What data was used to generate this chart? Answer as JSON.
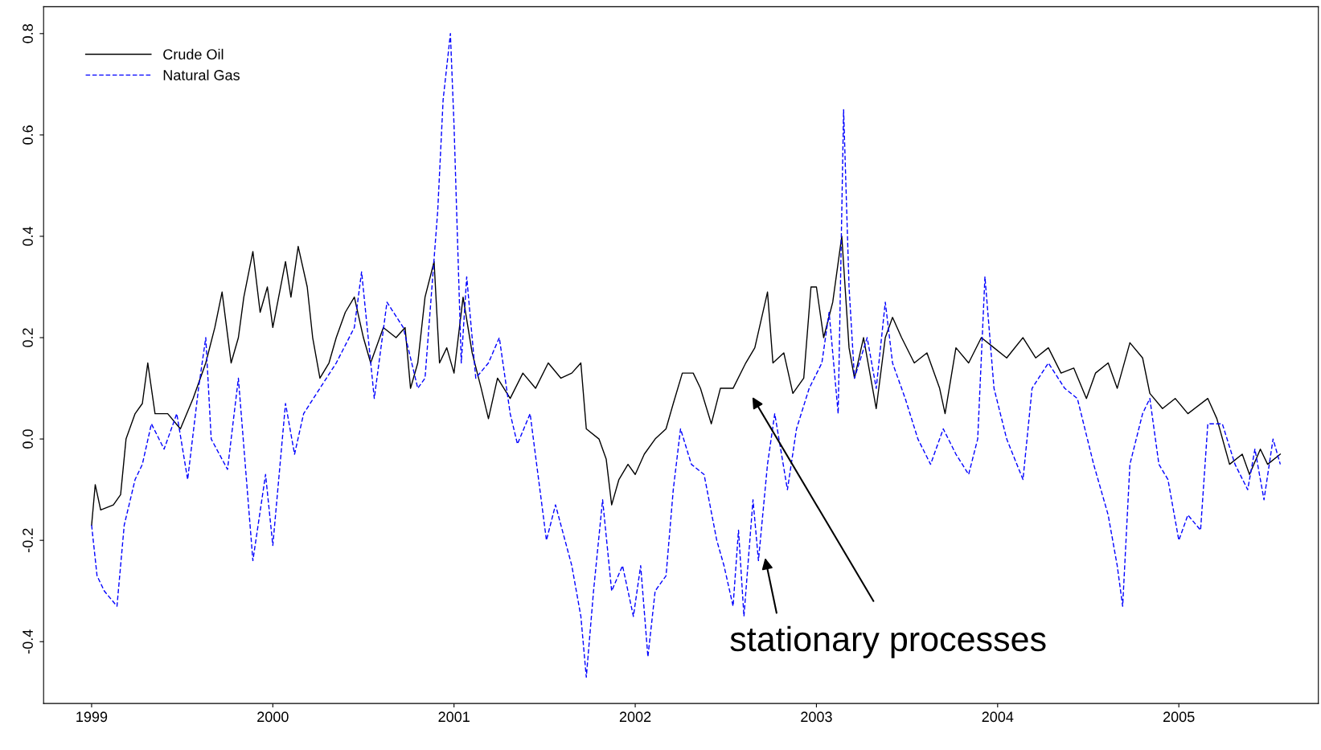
{
  "chart_data": {
    "type": "line",
    "xlim": [
      1998.735,
      2005.77
    ],
    "ylim": [
      -0.522,
      0.853
    ],
    "xticks": [
      1999,
      2000,
      2001,
      2002,
      2003,
      2004,
      2005
    ],
    "yticks": [
      {
        "value": -0.4,
        "label": "-0.4"
      },
      {
        "value": -0.2,
        "label": "-0.2"
      },
      {
        "value": 0,
        "label": "0.0"
      },
      {
        "value": 0.2,
        "label": "0.2"
      },
      {
        "value": 0.4,
        "label": "0.4"
      },
      {
        "value": 0.6,
        "label": "0.6"
      },
      {
        "value": 0.8,
        "label": "0.8"
      }
    ],
    "grid": false,
    "legend": "top left",
    "annotations": [
      "stationary processes"
    ],
    "series": [
      {
        "name": "Crude Oil",
        "color": "#000000",
        "line_style": "solid",
        "x": [
          1999.0,
          1999.02,
          1999.05,
          1999.12,
          1999.16,
          1999.19,
          1999.24,
          1999.28,
          1999.31,
          1999.35,
          1999.42,
          1999.49,
          1999.56,
          1999.63,
          1999.68,
          1999.72,
          1999.77,
          1999.81,
          1999.84,
          1999.89,
          1999.93,
          1999.97,
          2000.0,
          2000.07,
          2000.1,
          2000.14,
          2000.19,
          2000.22,
          2000.26,
          2000.31,
          2000.35,
          2000.4,
          2000.45,
          2000.5,
          2000.54,
          2000.61,
          2000.68,
          2000.73,
          2000.76,
          2000.8,
          2000.84,
          2000.89,
          2000.92,
          2000.96,
          2001.0,
          2001.05,
          2001.1,
          2001.15,
          2001.19,
          2001.24,
          2001.31,
          2001.38,
          2001.45,
          2001.52,
          2001.59,
          2001.65,
          2001.7,
          2001.73,
          2001.8,
          2001.84,
          2001.87,
          2001.91,
          2001.96,
          2002.0,
          2002.05,
          2002.11,
          2002.17,
          2002.21,
          2002.26,
          2002.32,
          2002.36,
          2002.42,
          2002.47,
          2002.54,
          2002.61,
          2002.66,
          2002.73,
          2002.76,
          2002.82,
          2002.87,
          2002.93,
          2002.97,
          2003.0,
          2003.04,
          2003.09,
          2003.14,
          2003.18,
          2003.21,
          2003.26,
          2003.31,
          2003.33,
          2003.38,
          2003.42,
          2003.47,
          2003.54,
          2003.61,
          2003.68,
          2003.71,
          2003.77,
          2003.84,
          2003.91,
          2003.98,
          2004.05,
          2004.14,
          2004.21,
          2004.28,
          2004.35,
          2004.42,
          2004.49,
          2004.54,
          2004.61,
          2004.66,
          2004.73,
          2004.8,
          2004.84,
          2004.91,
          2004.98,
          2005.05,
          2005.16,
          2005.21,
          2005.28,
          2005.35,
          2005.39,
          2005.45,
          2005.49,
          2005.56
        ],
        "values": [
          -0.17,
          -0.09,
          -0.14,
          -0.13,
          -0.11,
          0.0,
          0.05,
          0.07,
          0.15,
          0.05,
          0.05,
          0.02,
          0.08,
          0.15,
          0.22,
          0.29,
          0.15,
          0.2,
          0.28,
          0.37,
          0.25,
          0.3,
          0.22,
          0.35,
          0.28,
          0.38,
          0.3,
          0.2,
          0.12,
          0.15,
          0.2,
          0.25,
          0.28,
          0.2,
          0.15,
          0.22,
          0.2,
          0.22,
          0.1,
          0.15,
          0.28,
          0.35,
          0.15,
          0.18,
          0.13,
          0.28,
          0.17,
          0.1,
          0.04,
          0.12,
          0.08,
          0.13,
          0.1,
          0.15,
          0.12,
          0.13,
          0.15,
          0.02,
          0.0,
          -0.04,
          -0.13,
          -0.08,
          -0.05,
          -0.07,
          -0.03,
          0.0,
          0.02,
          0.07,
          0.13,
          0.13,
          0.1,
          0.03,
          0.1,
          0.1,
          0.15,
          0.18,
          0.29,
          0.15,
          0.17,
          0.09,
          0.12,
          0.3,
          0.3,
          0.2,
          0.27,
          0.4,
          0.18,
          0.12,
          0.2,
          0.1,
          0.06,
          0.2,
          0.24,
          0.2,
          0.15,
          0.17,
          0.1,
          0.05,
          0.18,
          0.15,
          0.2,
          0.18,
          0.16,
          0.2,
          0.16,
          0.18,
          0.13,
          0.14,
          0.08,
          0.13,
          0.15,
          0.1,
          0.19,
          0.16,
          0.09,
          0.06,
          0.08,
          0.05,
          0.08,
          0.04,
          -0.05,
          -0.03,
          -0.07,
          -0.02,
          -0.05,
          -0.03
        ]
      },
      {
        "name": "Natural Gas",
        "color": "#0000ff",
        "line_style": "dashed",
        "x": [
          1999.0,
          1999.03,
          1999.07,
          1999.14,
          1999.18,
          1999.24,
          1999.28,
          1999.33,
          1999.4,
          1999.47,
          1999.53,
          1999.59,
          1999.63,
          1999.66,
          1999.75,
          1999.81,
          1999.89,
          1999.96,
          2000.0,
          2000.07,
          2000.12,
          2000.17,
          2000.26,
          2000.35,
          2000.45,
          2000.49,
          2000.56,
          2000.63,
          2000.72,
          2000.8,
          2000.84,
          2000.91,
          2000.94,
          2000.98,
          2001.0,
          2001.04,
          2001.07,
          2001.12,
          2001.19,
          2001.25,
          2001.31,
          2001.35,
          2001.42,
          2001.51,
          2001.56,
          2001.65,
          2001.7,
          2001.73,
          2001.77,
          2001.82,
          2001.87,
          2001.93,
          2001.99,
          2002.03,
          2002.07,
          2002.11,
          2002.17,
          2002.21,
          2002.25,
          2002.31,
          2002.38,
          2002.45,
          2002.49,
          2002.54,
          2002.57,
          2002.6,
          2002.65,
          2002.68,
          2002.73,
          2002.77,
          2002.84,
          2002.89,
          2002.96,
          2003.03,
          2003.07,
          2003.12,
          2003.15,
          2003.18,
          2003.21,
          2003.28,
          2003.33,
          2003.38,
          2003.42,
          2003.49,
          2003.56,
          2003.63,
          2003.7,
          2003.77,
          2003.84,
          2003.89,
          2003.93,
          2003.98,
          2004.05,
          2004.14,
          2004.19,
          2004.28,
          2004.37,
          2004.44,
          2004.53,
          2004.61,
          2004.66,
          2004.69,
          2004.73,
          2004.8,
          2004.84,
          2004.89,
          2004.94,
          2005.0,
          2005.05,
          2005.12,
          2005.16,
          2005.24,
          2005.31,
          2005.38,
          2005.42,
          2005.47,
          2005.52,
          2005.56
        ],
        "values": [
          -0.17,
          -0.27,
          -0.3,
          -0.33,
          -0.17,
          -0.08,
          -0.05,
          0.03,
          -0.02,
          0.05,
          -0.08,
          0.1,
          0.2,
          0.0,
          -0.06,
          0.12,
          -0.24,
          -0.07,
          -0.21,
          0.07,
          -0.03,
          0.05,
          0.1,
          0.15,
          0.22,
          0.33,
          0.08,
          0.27,
          0.22,
          0.1,
          0.12,
          0.45,
          0.67,
          0.8,
          0.62,
          0.15,
          0.32,
          0.12,
          0.15,
          0.2,
          0.05,
          -0.01,
          0.05,
          -0.2,
          -0.13,
          -0.25,
          -0.35,
          -0.47,
          -0.3,
          -0.12,
          -0.3,
          -0.25,
          -0.35,
          -0.25,
          -0.43,
          -0.3,
          -0.27,
          -0.1,
          0.02,
          -0.05,
          -0.07,
          -0.2,
          -0.25,
          -0.33,
          -0.18,
          -0.35,
          -0.12,
          -0.24,
          -0.05,
          0.05,
          -0.1,
          0.02,
          0.1,
          0.15,
          0.25,
          0.05,
          0.65,
          0.3,
          0.12,
          0.2,
          0.1,
          0.27,
          0.15,
          0.08,
          0.0,
          -0.05,
          0.02,
          -0.03,
          -0.07,
          0.0,
          0.32,
          0.1,
          0.0,
          -0.08,
          0.1,
          0.15,
          0.1,
          0.08,
          -0.05,
          -0.15,
          -0.25,
          -0.33,
          -0.05,
          0.05,
          0.08,
          -0.05,
          -0.08,
          -0.2,
          -0.15,
          -0.18,
          0.03,
          0.03,
          -0.05,
          -0.1,
          -0.02,
          -0.12,
          0.0,
          -0.05
        ]
      }
    ]
  }
}
